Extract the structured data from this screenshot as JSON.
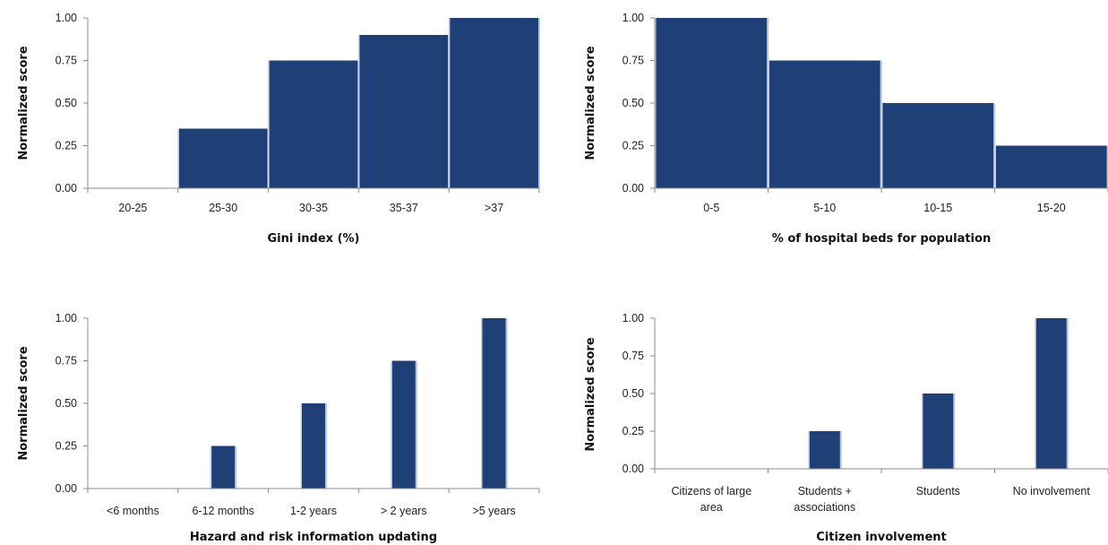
{
  "chart_data": [
    {
      "type": "bar",
      "categories": [
        "20-25",
        "25-30",
        "30-35",
        "35-37",
        ">37"
      ],
      "values": [
        0,
        0.35,
        0.75,
        0.9,
        1.0
      ],
      "xlabel": "Gini index (%)",
      "ylabel": "Normalized score",
      "ylim": [
        0,
        1
      ],
      "yticks": [
        "0.00",
        "0.25",
        "0.50",
        "0.75",
        "1.00"
      ],
      "grid": false,
      "bar_color": "#1f3f77"
    },
    {
      "type": "bar",
      "categories": [
        "0-5",
        "5-10",
        "10-15",
        "15-20"
      ],
      "values": [
        1.0,
        0.75,
        0.5,
        0.25
      ],
      "xlabel": "% of hospital beds for population",
      "ylabel": "Normalized score",
      "ylim": [
        0,
        1
      ],
      "yticks": [
        "0.00",
        "0.25",
        "0.50",
        "0.75",
        "1.00"
      ],
      "grid": false,
      "bar_color": "#1f3f77"
    },
    {
      "type": "bar",
      "categories": [
        "<6 months",
        "6-12 months",
        "1-2 years",
        "> 2 years",
        ">5 years"
      ],
      "values": [
        0,
        0.25,
        0.5,
        0.75,
        1.0
      ],
      "xlabel": "Hazard and risk information updating",
      "ylabel": "Normalized score",
      "ylim": [
        0,
        1
      ],
      "yticks": [
        "0.00",
        "0.25",
        "0.50",
        "0.75",
        "1.00"
      ],
      "grid": false,
      "bar_color": "#1f3f77"
    },
    {
      "type": "bar",
      "categories": [
        "Citizens of large area",
        "Students + associations",
        "Students",
        "No involvement"
      ],
      "values": [
        0,
        0.25,
        0.5,
        1.0
      ],
      "xlabel": "Citizen involvement",
      "ylabel": "Normalized score",
      "ylim": [
        0,
        1
      ],
      "yticks": [
        "0.00",
        "0.25",
        "0.50",
        "0.75",
        "1.00"
      ],
      "grid": false,
      "bar_color": "#1f3f77"
    }
  ]
}
